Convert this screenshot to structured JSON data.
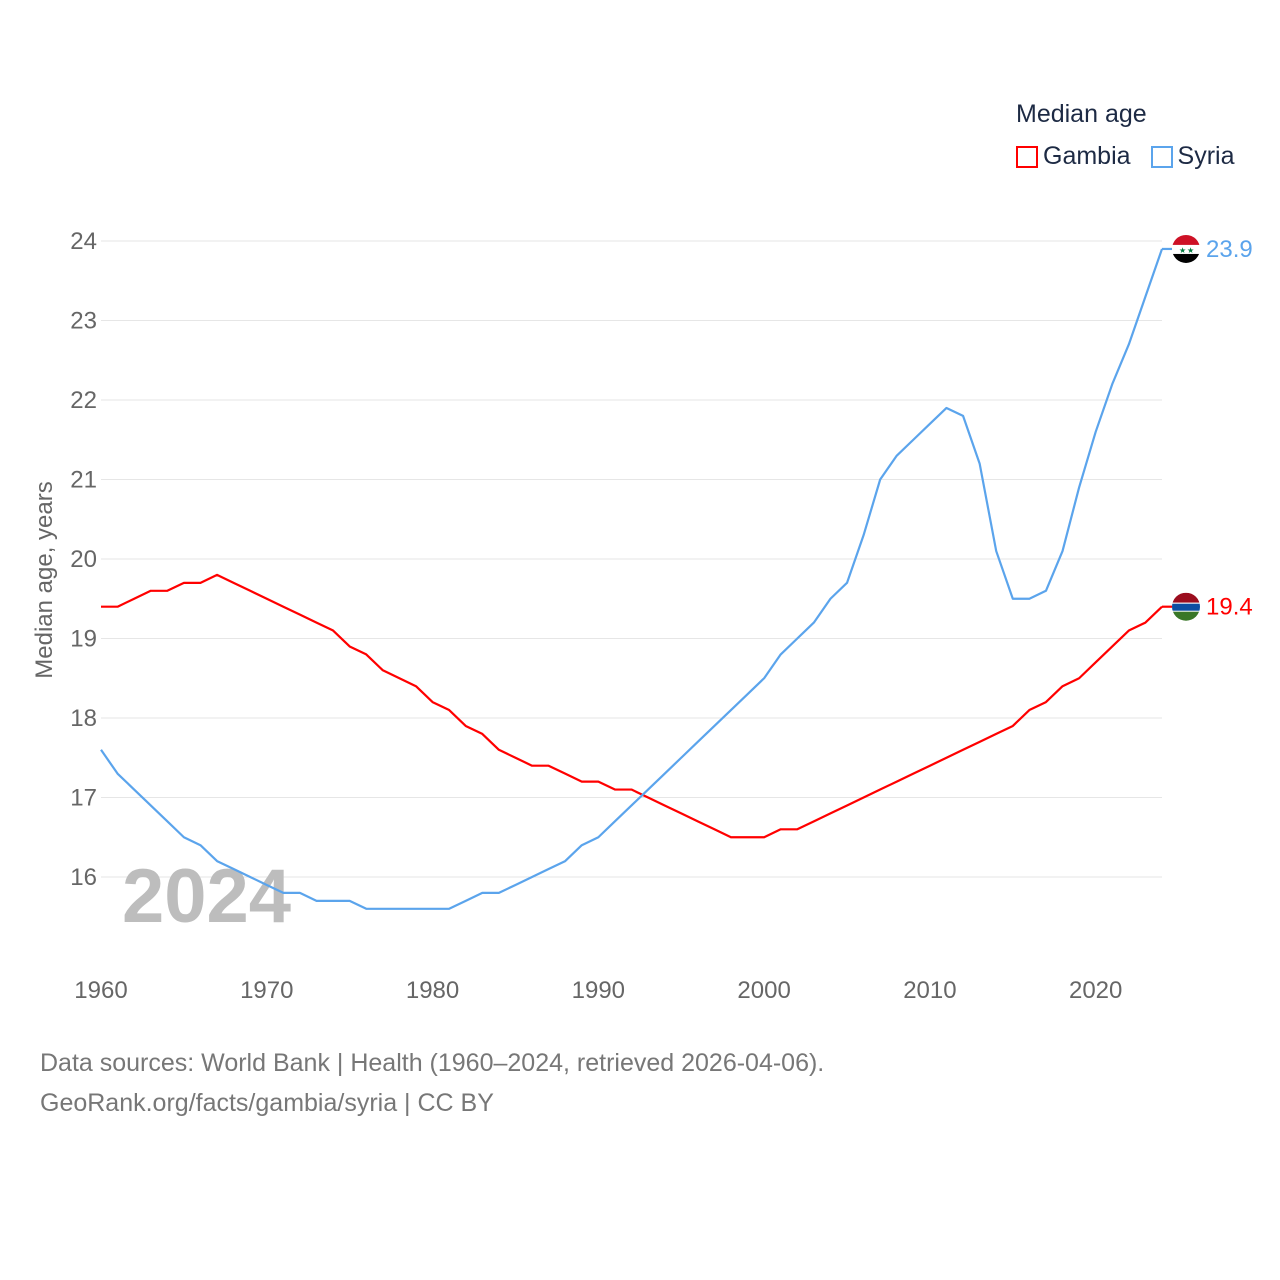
{
  "chart_data": {
    "type": "line",
    "title": "Median age",
    "xlabel": "",
    "ylabel": "Median age, years",
    "xlim": [
      1960,
      2024
    ],
    "ylim": [
      15,
      24
    ],
    "yticks": [
      16,
      17,
      18,
      19,
      20,
      21,
      22,
      23,
      24
    ],
    "xticks": [
      1960,
      1970,
      1980,
      1990,
      2000,
      2010,
      2020
    ],
    "grid": true,
    "legend_placement": "top-right",
    "year_watermark": "2024",
    "x": [
      1960,
      1961,
      1962,
      1963,
      1964,
      1965,
      1966,
      1967,
      1968,
      1969,
      1970,
      1971,
      1972,
      1973,
      1974,
      1975,
      1976,
      1977,
      1978,
      1979,
      1980,
      1981,
      1982,
      1983,
      1984,
      1985,
      1986,
      1987,
      1988,
      1989,
      1990,
      1991,
      1992,
      1993,
      1994,
      1995,
      1996,
      1997,
      1998,
      1999,
      2000,
      2001,
      2002,
      2003,
      2004,
      2005,
      2006,
      2007,
      2008,
      2009,
      2010,
      2011,
      2012,
      2013,
      2014,
      2015,
      2016,
      2017,
      2018,
      2019,
      2020,
      2021,
      2022,
      2023,
      2024
    ],
    "series": [
      {
        "name": "Gambia",
        "color": "#ff0000",
        "end_label": "19.4",
        "values": [
          19.4,
          19.4,
          19.5,
          19.6,
          19.6,
          19.7,
          19.7,
          19.8,
          19.7,
          19.6,
          19.5,
          19.4,
          19.3,
          19.2,
          19.1,
          18.9,
          18.8,
          18.6,
          18.5,
          18.4,
          18.2,
          18.1,
          17.9,
          17.8,
          17.6,
          17.5,
          17.4,
          17.4,
          17.3,
          17.2,
          17.2,
          17.1,
          17.1,
          17.0,
          16.9,
          16.8,
          16.7,
          16.6,
          16.5,
          16.5,
          16.5,
          16.6,
          16.6,
          16.7,
          16.8,
          16.9,
          17.0,
          17.1,
          17.2,
          17.3,
          17.4,
          17.5,
          17.6,
          17.7,
          17.8,
          17.9,
          18.1,
          18.2,
          18.4,
          18.5,
          18.7,
          18.9,
          19.1,
          19.2,
          19.4
        ]
      },
      {
        "name": "Syria",
        "color": "#5ba4ec",
        "end_label": "23.9",
        "values": [
          17.6,
          17.3,
          17.1,
          16.9,
          16.7,
          16.5,
          16.4,
          16.2,
          16.1,
          16.0,
          15.9,
          15.8,
          15.8,
          15.7,
          15.7,
          15.7,
          15.6,
          15.6,
          15.6,
          15.6,
          15.6,
          15.6,
          15.7,
          15.8,
          15.8,
          15.9,
          16.0,
          16.1,
          16.2,
          16.4,
          16.5,
          16.7,
          16.9,
          17.1,
          17.3,
          17.5,
          17.7,
          17.9,
          18.1,
          18.3,
          18.5,
          18.8,
          19.0,
          19.2,
          19.5,
          19.7,
          20.3,
          21.0,
          21.3,
          21.5,
          21.7,
          21.9,
          21.8,
          21.2,
          20.1,
          19.5,
          19.5,
          19.6,
          20.1,
          20.9,
          21.6,
          22.2,
          22.7,
          23.3,
          23.9
        ]
      }
    ]
  },
  "footer": {
    "line1": "Data sources: World Bank | Health (1960–2024, retrieved 2026-04-06).",
    "line2": "GeoRank.org/facts/gambia/syria | CC BY"
  }
}
